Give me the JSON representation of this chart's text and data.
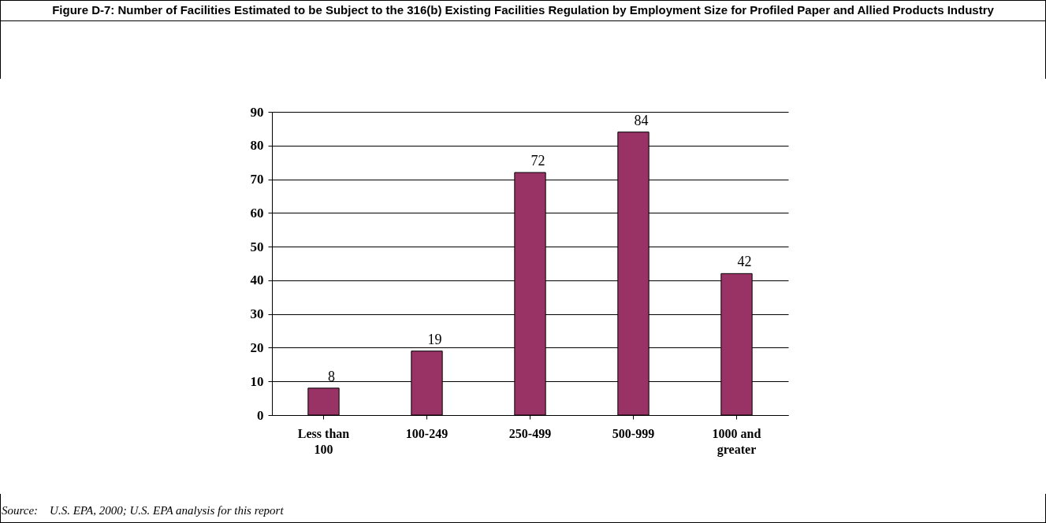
{
  "chart_data": {
    "type": "bar",
    "title": "Figure D-7: Number of Facilities Estimated to be Subject to the 316(b) Existing Facilities Regulation by Employment Size for Profiled Paper and Allied Products Industry",
    "categories": [
      "Less than 100",
      "100-249",
      "250-499",
      "500-999",
      "1000 and greater"
    ],
    "values": [
      8,
      19,
      72,
      84,
      42
    ],
    "color": "#993366",
    "ylim": [
      0,
      90
    ],
    "yticks": [
      0,
      10,
      20,
      30,
      40,
      50,
      60,
      70,
      80,
      90
    ],
    "grid": "y",
    "data_labels": true,
    "annotations": [
      "Source:    U.S. EPA, 2000; U.S. EPA analysis for this report"
    ]
  }
}
